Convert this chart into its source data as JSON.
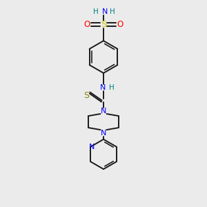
{
  "bg_color": "#ebebeb",
  "bond_color": "#1a1a1a",
  "N_color": "#0000ff",
  "O_color": "#ff0000",
  "S_color": "#cccc00",
  "S_thio_color": "#888800",
  "H_color": "#008080",
  "figsize": [
    3.0,
    3.0
  ],
  "dpi": 100,
  "xlim": [
    0,
    10
  ],
  "ylim": [
    0,
    10
  ]
}
